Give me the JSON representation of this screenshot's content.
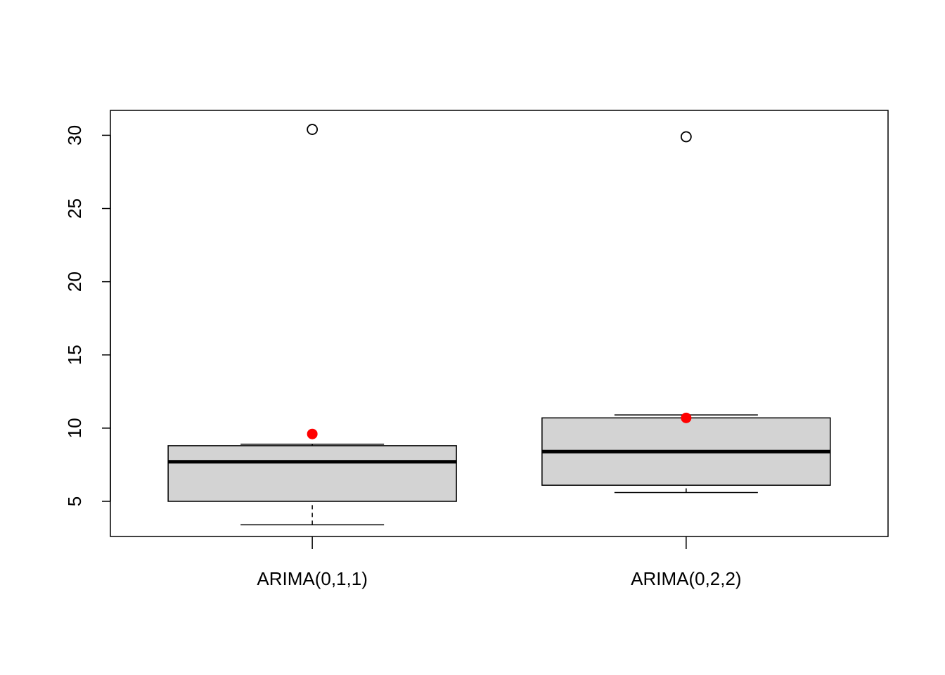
{
  "chart_data": {
    "type": "boxplot",
    "title": "",
    "xlabel": "",
    "ylabel": "",
    "categories": [
      "ARIMA(0,1,1)",
      "ARIMA(0,2,2)"
    ],
    "yticks": [
      5,
      10,
      15,
      20,
      25,
      30
    ],
    "ylim": [
      2.6,
      31.7
    ],
    "boxes": [
      {
        "name": "ARIMA(0,1,1)",
        "whisker_low": 3.4,
        "q1": 5.0,
        "median": 7.7,
        "q3": 8.8,
        "whisker_high": 8.9,
        "outliers": [
          30.4
        ],
        "mean": 9.6
      },
      {
        "name": "ARIMA(0,2,2)",
        "whisker_low": 5.6,
        "q1": 6.1,
        "median": 8.4,
        "q3": 10.7,
        "whisker_high": 10.9,
        "outliers": [
          29.9
        ],
        "mean": 10.7
      }
    ],
    "colors": {
      "box_fill": "#d3d3d3",
      "stroke": "#000000",
      "mean_marker": "#ff0000"
    },
    "grid": false,
    "legend": "none"
  }
}
